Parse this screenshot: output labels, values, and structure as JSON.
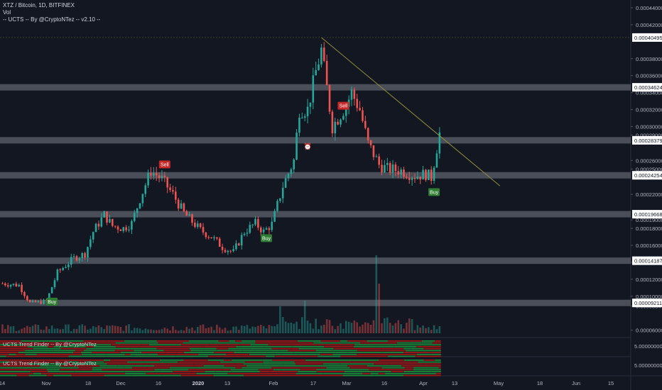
{
  "header": {
    "symbol": "XTZ / Bitcoin, 1D, BITFINEX",
    "vol": "Vol",
    "indicator": "-- UCTS -- By @CryptoNTez -- v2.10 --"
  },
  "panes": {
    "trend1": "UCTS Trend Finder -- By @CryptoNTez",
    "trend2": "UCTS Trend Finder -- By @CryptoNTez",
    "trend_value": "5.00000000"
  },
  "colors": {
    "bg": "#131722",
    "up": "#26a69a",
    "down": "#ef5350",
    "band": "#787b86",
    "trendline": "#8f8f3a",
    "sell": "#c62828",
    "buy": "#2e7d32"
  },
  "chart_data": {
    "type": "candlestick",
    "y_axis": {
      "ylim": [
        5.8e-05,
        0.000445
      ],
      "ticks": [
        "0.00044000",
        "0.00042000",
        "0.00038000",
        "0.00036000",
        "0.00034000",
        "0.00032000",
        "0.00030000",
        "0.00029000",
        "0.00026000",
        "0.00025000",
        "0.00022000",
        "0.00019000",
        "0.00018000",
        "0.00016000",
        "0.00014000",
        "0.00012000",
        "0.00010000",
        "0.00008847",
        "0.00006000"
      ],
      "highlighted": [
        "0.00040495",
        "0.00034624",
        "0.00028379",
        "0.00024254",
        "0.00019668",
        "0.00014187",
        "0.00009211"
      ]
    },
    "x_axis": {
      "tick_labels": [
        "14",
        "Nov",
        "18",
        "Dec",
        "16",
        "2020",
        "13",
        "Feb",
        "17",
        "Mar",
        "16",
        "Apr",
        "13",
        "May",
        "18",
        "Jun",
        "15"
      ]
    },
    "levels": [
      0.00034624,
      0.00028379,
      0.00024254,
      0.00019668,
      0.00014187,
      9.211e-05
    ],
    "trendline": {
      "from_day": 116,
      "from_price": 0.00040495,
      "to_day": 181,
      "to_price": 0.00023
    },
    "signals": [
      {
        "label": "Buy",
        "type": "buy",
        "day": 18
      },
      {
        "label": "Sell",
        "type": "sell",
        "day": 59
      },
      {
        "label": "Buy",
        "type": "buy",
        "day": 96
      },
      {
        "label": "Sell",
        "type": "sell",
        "day": 124
      },
      {
        "label": "Buy",
        "type": "buy",
        "day": 157
      }
    ],
    "anchors": [
      [
        0,
        0.000115
      ],
      [
        6,
        0.000113
      ],
      [
        10,
        9.2e-05
      ],
      [
        16,
        9.4e-05
      ],
      [
        20,
        0.000128
      ],
      [
        26,
        0.000145
      ],
      [
        30,
        0.00015
      ],
      [
        33,
        0.000176
      ],
      [
        37,
        0.000196
      ],
      [
        40,
        0.000183
      ],
      [
        44,
        0.00018
      ],
      [
        47,
        0.000186
      ],
      [
        50,
        0.000215
      ],
      [
        54,
        0.000248
      ],
      [
        58,
        0.000238
      ],
      [
        62,
        0.00022
      ],
      [
        66,
        0.000198
      ],
      [
        72,
        0.000178
      ],
      [
        76,
        0.00017
      ],
      [
        80,
        0.000158
      ],
      [
        84,
        0.000152
      ],
      [
        88,
        0.000176
      ],
      [
        92,
        0.000186
      ],
      [
        95,
        0.000176
      ],
      [
        98,
        0.000185
      ],
      [
        102,
        0.00023
      ],
      [
        106,
        0.00026
      ],
      [
        108,
        0.00032
      ],
      [
        111,
        0.00032
      ],
      [
        114,
        0.000365
      ],
      [
        116,
        0.00039
      ],
      [
        118,
        0.000345
      ],
      [
        120,
        0.0003
      ],
      [
        123,
        0.000315
      ],
      [
        125,
        0.000325
      ],
      [
        127,
        0.00034
      ],
      [
        130,
        0.00032
      ],
      [
        133,
        0.00028
      ],
      [
        137,
        0.000255
      ],
      [
        140,
        0.00025
      ],
      [
        145,
        0.000248
      ],
      [
        150,
        0.000242
      ],
      [
        154,
        0.000244
      ],
      [
        156,
        0.00024
      ],
      [
        158,
        0.000275
      ],
      [
        159,
        0.000292
      ]
    ],
    "days_total": 218,
    "last_candle_day": 159
  }
}
